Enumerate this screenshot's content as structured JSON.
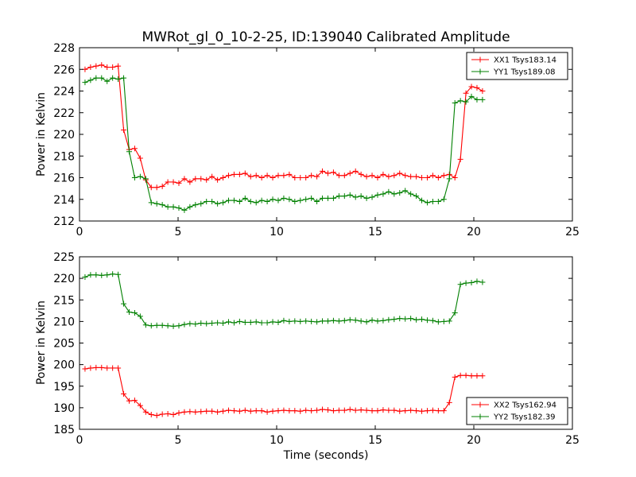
{
  "chart_data": [
    {
      "type": "line",
      "title": "MWRot_gl_0_10-2-25, ID:139040 Calibrated Amplitude",
      "xlabel": "",
      "ylabel": "Power in Kelvin",
      "xlim": [
        0,
        25
      ],
      "ylim": [
        212,
        228
      ],
      "xticks": [
        0,
        5,
        10,
        15,
        20,
        25
      ],
      "yticks": [
        212,
        214,
        216,
        218,
        220,
        222,
        224,
        226,
        228
      ],
      "legend_position": "top-right",
      "series": [
        {
          "name": "XX1 Tsys183.14",
          "color": "#ff0000",
          "x": [
            0.28,
            0.56,
            0.84,
            1.12,
            1.4,
            1.68,
            1.96,
            2.24,
            2.52,
            2.8,
            3.08,
            3.36,
            3.64,
            3.92,
            4.2,
            4.48,
            4.76,
            5.04,
            5.32,
            5.6,
            5.88,
            6.16,
            6.44,
            6.72,
            7.0,
            7.28,
            7.56,
            7.84,
            8.12,
            8.4,
            8.68,
            8.96,
            9.24,
            9.52,
            9.8,
            10.08,
            10.36,
            10.64,
            10.92,
            11.2,
            11.48,
            11.76,
            12.04,
            12.32,
            12.6,
            12.88,
            13.16,
            13.44,
            13.72,
            14.0,
            14.28,
            14.56,
            14.84,
            15.12,
            15.4,
            15.68,
            15.96,
            16.24,
            16.52,
            16.8,
            17.08,
            17.36,
            17.64,
            17.92,
            18.2,
            18.48,
            18.76,
            19.04,
            19.32,
            19.6,
            19.88,
            20.16,
            20.44
          ],
          "y": [
            226.0,
            226.2,
            226.3,
            226.4,
            226.2,
            226.2,
            226.3,
            220.4,
            218.6,
            218.7,
            217.8,
            215.8,
            215.1,
            215.1,
            215.2,
            215.6,
            215.6,
            215.5,
            215.9,
            215.6,
            215.9,
            215.9,
            215.8,
            216.1,
            215.8,
            216.0,
            216.2,
            216.3,
            216.3,
            216.4,
            216.1,
            216.2,
            216.0,
            216.2,
            216.0,
            216.2,
            216.2,
            216.3,
            216.0,
            216.0,
            216.0,
            216.2,
            216.1,
            216.6,
            216.4,
            216.5,
            216.2,
            216.2,
            216.4,
            216.6,
            216.3,
            216.1,
            216.2,
            216.0,
            216.3,
            216.1,
            216.2,
            216.4,
            216.2,
            216.1,
            216.1,
            216.0,
            216.0,
            216.2,
            216.0,
            216.2,
            216.3,
            216.0,
            217.7,
            223.8,
            224.4,
            224.3,
            224.0
          ]
        },
        {
          "name": "YY1 Tsys189.08",
          "color": "#008000",
          "x": [
            0.28,
            0.56,
            0.84,
            1.12,
            1.4,
            1.68,
            1.96,
            2.24,
            2.52,
            2.8,
            3.08,
            3.36,
            3.64,
            3.92,
            4.2,
            4.48,
            4.76,
            5.04,
            5.32,
            5.6,
            5.88,
            6.16,
            6.44,
            6.72,
            7.0,
            7.28,
            7.56,
            7.84,
            8.12,
            8.4,
            8.68,
            8.96,
            9.24,
            9.52,
            9.8,
            10.08,
            10.36,
            10.64,
            10.92,
            11.2,
            11.48,
            11.76,
            12.04,
            12.32,
            12.6,
            12.88,
            13.16,
            13.44,
            13.72,
            14.0,
            14.28,
            14.56,
            14.84,
            15.12,
            15.4,
            15.68,
            15.96,
            16.24,
            16.52,
            16.8,
            17.08,
            17.36,
            17.64,
            17.92,
            18.2,
            18.48,
            18.76,
            19.04,
            19.32,
            19.6,
            19.88,
            20.16,
            20.44
          ],
          "y": [
            224.8,
            225.0,
            225.2,
            225.2,
            224.9,
            225.2,
            225.1,
            225.2,
            218.4,
            216.0,
            216.1,
            215.9,
            213.7,
            213.6,
            213.5,
            213.3,
            213.3,
            213.2,
            213.0,
            213.3,
            213.5,
            213.6,
            213.8,
            213.8,
            213.6,
            213.7,
            213.9,
            213.9,
            213.8,
            214.1,
            213.8,
            213.7,
            213.9,
            213.8,
            214.0,
            213.9,
            214.1,
            214.0,
            213.8,
            213.9,
            214.0,
            214.1,
            213.8,
            214.1,
            214.1,
            214.1,
            214.3,
            214.3,
            214.4,
            214.2,
            214.3,
            214.1,
            214.2,
            214.4,
            214.5,
            214.7,
            214.5,
            214.6,
            214.8,
            214.5,
            214.3,
            213.9,
            213.7,
            213.8,
            213.8,
            214.0,
            215.9,
            222.9,
            223.1,
            223.0,
            223.5,
            223.2,
            223.2
          ]
        }
      ]
    },
    {
      "type": "line",
      "title": "",
      "xlabel": "Time (seconds)",
      "ylabel": "Power in Kelvin",
      "xlim": [
        0,
        25
      ],
      "ylim": [
        185,
        225
      ],
      "xticks": [
        0,
        5,
        10,
        15,
        20,
        25
      ],
      "yticks": [
        185,
        190,
        195,
        200,
        205,
        210,
        215,
        220,
        225
      ],
      "legend_position": "bottom-right",
      "series": [
        {
          "name": "XX2 Tsys162.94",
          "color": "#ff0000",
          "x": [
            0.28,
            0.56,
            0.84,
            1.12,
            1.4,
            1.68,
            1.96,
            2.24,
            2.52,
            2.8,
            3.08,
            3.36,
            3.64,
            3.92,
            4.2,
            4.48,
            4.76,
            5.04,
            5.32,
            5.6,
            5.88,
            6.16,
            6.44,
            6.72,
            7.0,
            7.28,
            7.56,
            7.84,
            8.12,
            8.4,
            8.68,
            8.96,
            9.24,
            9.52,
            9.8,
            10.08,
            10.36,
            10.64,
            10.92,
            11.2,
            11.48,
            11.76,
            12.04,
            12.32,
            12.6,
            12.88,
            13.16,
            13.44,
            13.72,
            14.0,
            14.28,
            14.56,
            14.84,
            15.12,
            15.4,
            15.68,
            15.96,
            16.24,
            16.52,
            16.8,
            17.08,
            17.36,
            17.64,
            17.92,
            18.2,
            18.48,
            18.76,
            19.04,
            19.32,
            19.6,
            19.88,
            20.16,
            20.44
          ],
          "y": [
            199.0,
            199.2,
            199.3,
            199.3,
            199.2,
            199.2,
            199.2,
            193.2,
            191.6,
            191.7,
            190.5,
            189.0,
            188.4,
            188.2,
            188.5,
            188.6,
            188.4,
            188.8,
            189.0,
            189.1,
            189.0,
            189.1,
            189.2,
            189.2,
            189.0,
            189.2,
            189.4,
            189.3,
            189.2,
            189.4,
            189.2,
            189.3,
            189.3,
            189.0,
            189.2,
            189.3,
            189.4,
            189.3,
            189.3,
            189.2,
            189.4,
            189.3,
            189.4,
            189.6,
            189.5,
            189.3,
            189.4,
            189.4,
            189.6,
            189.4,
            189.5,
            189.4,
            189.3,
            189.3,
            189.5,
            189.4,
            189.4,
            189.2,
            189.3,
            189.4,
            189.3,
            189.2,
            189.3,
            189.4,
            189.3,
            189.3,
            191.2,
            197.1,
            197.5,
            197.5,
            197.4,
            197.4,
            197.4
          ]
        },
        {
          "name": "YY2 Tsys182.39",
          "color": "#008000",
          "x": [
            0.28,
            0.56,
            0.84,
            1.12,
            1.4,
            1.68,
            1.96,
            2.24,
            2.52,
            2.8,
            3.08,
            3.36,
            3.64,
            3.92,
            4.2,
            4.48,
            4.76,
            5.04,
            5.32,
            5.6,
            5.88,
            6.16,
            6.44,
            6.72,
            7.0,
            7.28,
            7.56,
            7.84,
            8.12,
            8.4,
            8.68,
            8.96,
            9.24,
            9.52,
            9.8,
            10.08,
            10.36,
            10.64,
            10.92,
            11.2,
            11.48,
            11.76,
            12.04,
            12.32,
            12.6,
            12.88,
            13.16,
            13.44,
            13.72,
            14.0,
            14.28,
            14.56,
            14.84,
            15.12,
            15.4,
            15.68,
            15.96,
            16.24,
            16.52,
            16.8,
            17.08,
            17.36,
            17.64,
            17.92,
            18.2,
            18.48,
            18.76,
            19.04,
            19.32,
            19.6,
            19.88,
            20.16,
            20.44
          ],
          "y": [
            220.3,
            220.8,
            220.8,
            220.7,
            220.8,
            221.0,
            220.9,
            214.1,
            212.2,
            212.0,
            211.2,
            209.2,
            209.0,
            209.1,
            209.1,
            209.0,
            208.9,
            209.0,
            209.3,
            209.5,
            209.4,
            209.6,
            209.5,
            209.6,
            209.7,
            209.6,
            209.9,
            209.7,
            210.0,
            209.8,
            209.8,
            209.9,
            209.7,
            209.7,
            209.9,
            209.8,
            210.2,
            210.0,
            210.1,
            210.0,
            210.1,
            210.0,
            209.9,
            210.1,
            210.1,
            210.2,
            210.1,
            210.2,
            210.4,
            210.3,
            210.1,
            209.9,
            210.3,
            210.1,
            210.2,
            210.4,
            210.5,
            210.7,
            210.6,
            210.7,
            210.4,
            210.5,
            210.3,
            210.2,
            209.9,
            210.0,
            210.1,
            212.0,
            218.6,
            218.9,
            219.0,
            219.3,
            219.1
          ]
        }
      ]
    }
  ]
}
